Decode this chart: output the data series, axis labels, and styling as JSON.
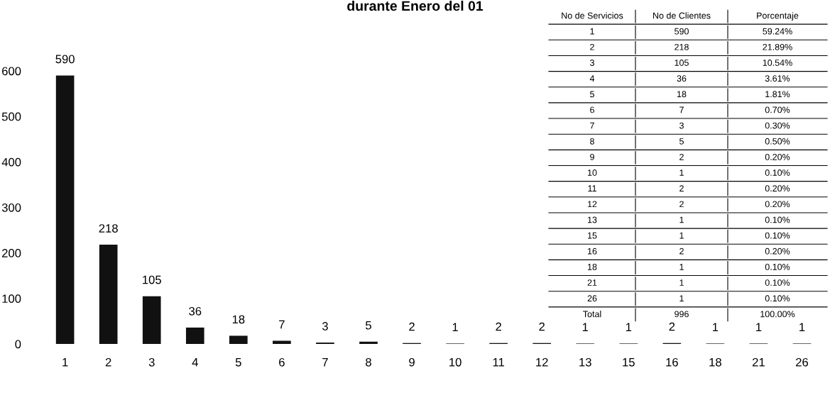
{
  "chart_data": {
    "type": "bar",
    "title": "durante Enero del 01",
    "categories": [
      "1",
      "2",
      "3",
      "4",
      "5",
      "6",
      "7",
      "8",
      "9",
      "10",
      "11",
      "12",
      "13",
      "15",
      "16",
      "18",
      "21",
      "26"
    ],
    "values": [
      590,
      218,
      105,
      36,
      18,
      7,
      3,
      5,
      2,
      1,
      2,
      2,
      1,
      1,
      2,
      1,
      1,
      1
    ],
    "color": "#111111",
    "data_labels": true,
    "grid": false,
    "ylim": [
      0,
      600
    ],
    "yticks": [
      0,
      100,
      200,
      300,
      400,
      500,
      600
    ],
    "annotations": [
      "No de Servicios",
      "No de Clientes",
      "Porcentaje",
      "1",
      "590",
      "59.24%",
      "2",
      "218",
      "21.89%",
      "3",
      "105",
      "10.54%",
      "4",
      "36",
      "3.61%",
      "5",
      "18",
      "1.81%",
      "6",
      "7",
      "0.70%",
      "7",
      "3",
      "0.30%",
      "8",
      "5",
      "0.50%",
      "9",
      "2",
      "0.20%",
      "10",
      "1",
      "0.10%",
      "11",
      "2",
      "0.20%",
      "12",
      "2",
      "0.20%",
      "13",
      "1",
      "0.10%",
      "15",
      "1",
      "0.10%",
      "16",
      "2",
      "0.20%",
      "18",
      "1",
      "0.10%",
      "21",
      "1",
      "0.10%",
      "26",
      "1",
      "0.10%",
      "Total",
      "996",
      "100.00%"
    ]
  }
}
